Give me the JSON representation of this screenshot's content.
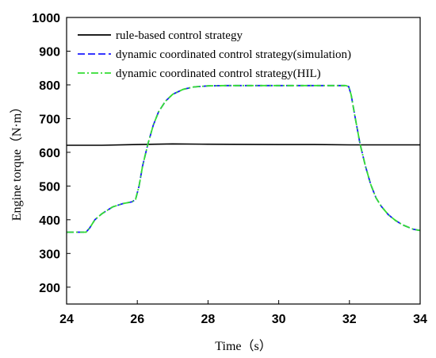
{
  "chart_data": {
    "type": "line",
    "xlabel": "Time（s）",
    "ylabel": "Engine torque（N·m）",
    "xlim": [
      24,
      34
    ],
    "ylim": [
      150,
      1000
    ],
    "xticks": [
      24,
      26,
      28,
      30,
      32,
      34
    ],
    "yticks": [
      200,
      300,
      400,
      500,
      600,
      700,
      800,
      900,
      1000
    ],
    "grid": false,
    "legend_position": "top-left",
    "series": [
      {
        "name": "rule-based control strategy",
        "color": "#000000",
        "style": "solid",
        "x": [
          24,
          25,
          26,
          26.5,
          27,
          28,
          30,
          31,
          32,
          33,
          34
        ],
        "y": [
          621,
          621,
          623,
          624,
          625,
          624,
          623,
          623,
          622,
          622,
          622
        ]
      },
      {
        "name": "dynamic coordinated control strategy(simulation)",
        "color": "#1a1aff",
        "style": "dashed",
        "x": [
          24,
          24.55,
          24.65,
          24.8,
          25,
          25.3,
          25.6,
          25.85,
          25.95,
          26.05,
          26.15,
          26.3,
          26.45,
          26.6,
          26.8,
          27.0,
          27.3,
          27.6,
          28,
          28.5,
          29,
          30,
          31,
          31.7,
          31.9,
          31.98,
          32.05,
          32.15,
          32.3,
          32.45,
          32.6,
          32.75,
          32.9,
          33.1,
          33.3,
          33.5,
          33.8,
          34
        ],
        "y": [
          363,
          363,
          375,
          400,
          418,
          438,
          448,
          453,
          460,
          500,
          560,
          625,
          680,
          720,
          752,
          772,
          787,
          794,
          797,
          798,
          798,
          798,
          798,
          798,
          798,
          795,
          770,
          710,
          625,
          560,
          505,
          465,
          440,
          415,
          398,
          385,
          372,
          368
        ]
      },
      {
        "name": "dynamic coordinated control strategy(HIL)",
        "color": "#33dd33",
        "style": "dashdot",
        "x": [
          24,
          24.55,
          24.65,
          24.8,
          25,
          25.3,
          25.6,
          25.85,
          25.95,
          26.05,
          26.15,
          26.3,
          26.45,
          26.6,
          26.8,
          27.0,
          27.3,
          27.6,
          28,
          28.5,
          29,
          30,
          31,
          31.7,
          31.9,
          31.98,
          32.05,
          32.15,
          32.3,
          32.45,
          32.6,
          32.75,
          32.9,
          33.1,
          33.3,
          33.5,
          33.8,
          34
        ],
        "y": [
          363,
          363,
          375,
          400,
          418,
          438,
          448,
          453,
          460,
          500,
          560,
          625,
          680,
          720,
          752,
          772,
          787,
          794,
          797,
          798,
          798,
          798,
          798,
          798,
          798,
          795,
          770,
          710,
          625,
          560,
          505,
          465,
          440,
          415,
          398,
          385,
          372,
          368
        ]
      }
    ]
  }
}
